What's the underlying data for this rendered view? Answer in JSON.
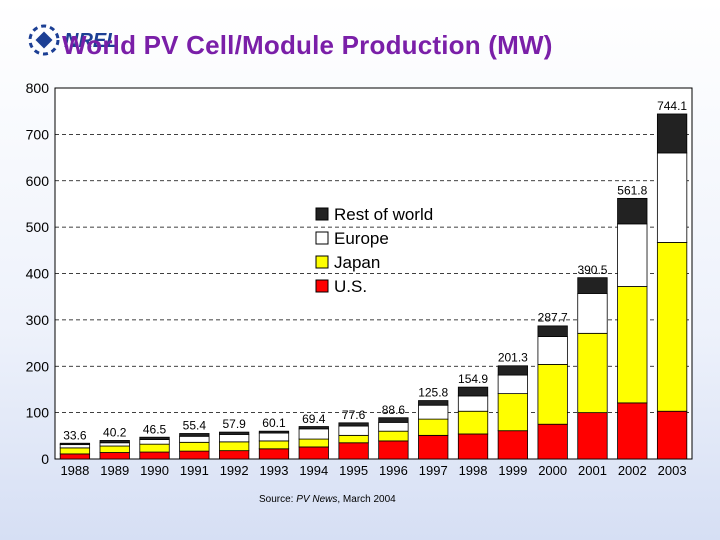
{
  "header": {
    "title": "World PV Cell/Module Production (MW)",
    "logo_text": "NREL"
  },
  "chart_data": {
    "type": "bar",
    "stacked": true,
    "title": "World PV Cell/Module Production (MW)",
    "xlabel": "",
    "ylabel": "",
    "ylim": [
      0,
      800
    ],
    "yticks": [
      0,
      100,
      200,
      300,
      400,
      500,
      600,
      700,
      800
    ],
    "grid": true,
    "legend_position": "center",
    "categories": [
      "1988",
      "1989",
      "1990",
      "1991",
      "1992",
      "1993",
      "1994",
      "1995",
      "1996",
      "1997",
      "1998",
      "1999",
      "2000",
      "2001",
      "2002",
      "2003"
    ],
    "series": [
      {
        "name": "U.S.",
        "color": "#ff0000",
        "values": [
          11,
          14,
          15,
          17,
          18,
          22,
          26,
          35,
          39,
          51,
          54,
          61,
          75,
          100,
          121,
          103
        ]
      },
      {
        "name": "Japan",
        "color": "#ffff00",
        "values": [
          13,
          14,
          17,
          19,
          19,
          17,
          17,
          16,
          21,
          35,
          49,
          80,
          129,
          171,
          251,
          364
        ]
      },
      {
        "name": "Europe",
        "color": "#ffffff",
        "values": [
          7,
          7,
          10,
          13,
          16,
          17,
          22,
          20,
          19,
          30,
          33,
          40,
          60,
          86,
          135,
          193
        ]
      },
      {
        "name": "Rest of world",
        "color": "#222222",
        "values": [
          3,
          5,
          5,
          6,
          5,
          4,
          5,
          7,
          10,
          10,
          19,
          20,
          23,
          34,
          55,
          84
        ]
      }
    ],
    "totals": [
      33.6,
      40.2,
      46.5,
      55.4,
      57.9,
      60.1,
      69.4,
      77.6,
      88.6,
      125.8,
      154.9,
      201.3,
      287.7,
      390.5,
      561.8,
      744.1
    ],
    "total_labels": [
      "33.6",
      "40.2",
      "46.5",
      "55.4",
      "57.9",
      "60.1",
      "69.4",
      "77.6",
      "88.6",
      "125.8",
      "154.9",
      "201.3",
      "287.7",
      "390.5",
      "561.8",
      "744.1"
    ],
    "legend": [
      "Rest of world",
      "Europe",
      "Japan",
      "U.S."
    ],
    "source_prefix": "Source: ",
    "source_italic": "PV News",
    "source_suffix": ", March 2004"
  }
}
